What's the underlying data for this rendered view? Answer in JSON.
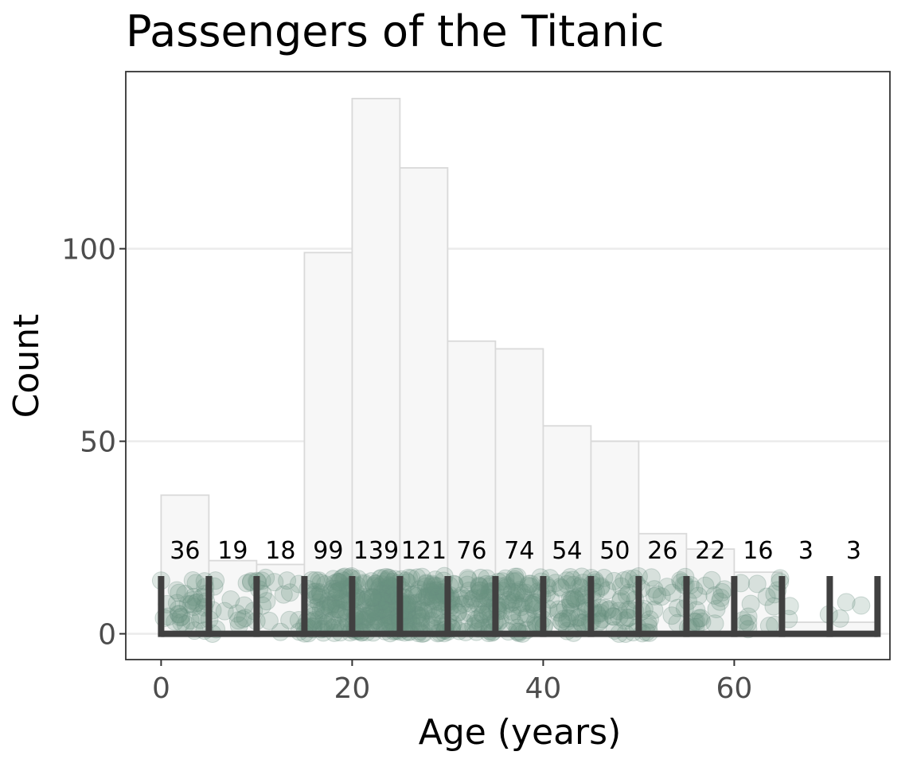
{
  "chart_data": {
    "type": "bar",
    "title": "Passengers of the Titanic",
    "xlabel": "Age (years)",
    "ylabel": "Count",
    "bin_width": 5,
    "bin_starts": [
      0,
      5,
      10,
      15,
      20,
      25,
      30,
      35,
      40,
      45,
      50,
      55,
      60,
      65,
      70
    ],
    "values": [
      36,
      19,
      18,
      99,
      139,
      121,
      76,
      74,
      54,
      50,
      26,
      22,
      16,
      3,
      3
    ],
    "data_labels": [
      "36",
      "19",
      "18",
      "99",
      "139",
      "121",
      "76",
      "74",
      "54",
      "50",
      "26",
      "22",
      "16",
      "3",
      "3"
    ],
    "xlim": [
      -3.7,
      76.3
    ],
    "ylim": [
      -6.7,
      146
    ],
    "x_ticks": [
      0,
      20,
      40,
      60
    ],
    "x_tick_labels": [
      "0",
      "20",
      "40",
      "60"
    ],
    "y_ticks": [
      0,
      50,
      100
    ],
    "y_tick_labels": [
      "0",
      "50",
      "100"
    ],
    "grid": "horizontal major",
    "colors": {
      "bar_fill": "#f7f7f7",
      "bar_stroke": "#d9d9d9",
      "point": "#6b9080",
      "ticks": "#404040",
      "grid": "#ebebeb"
    }
  }
}
